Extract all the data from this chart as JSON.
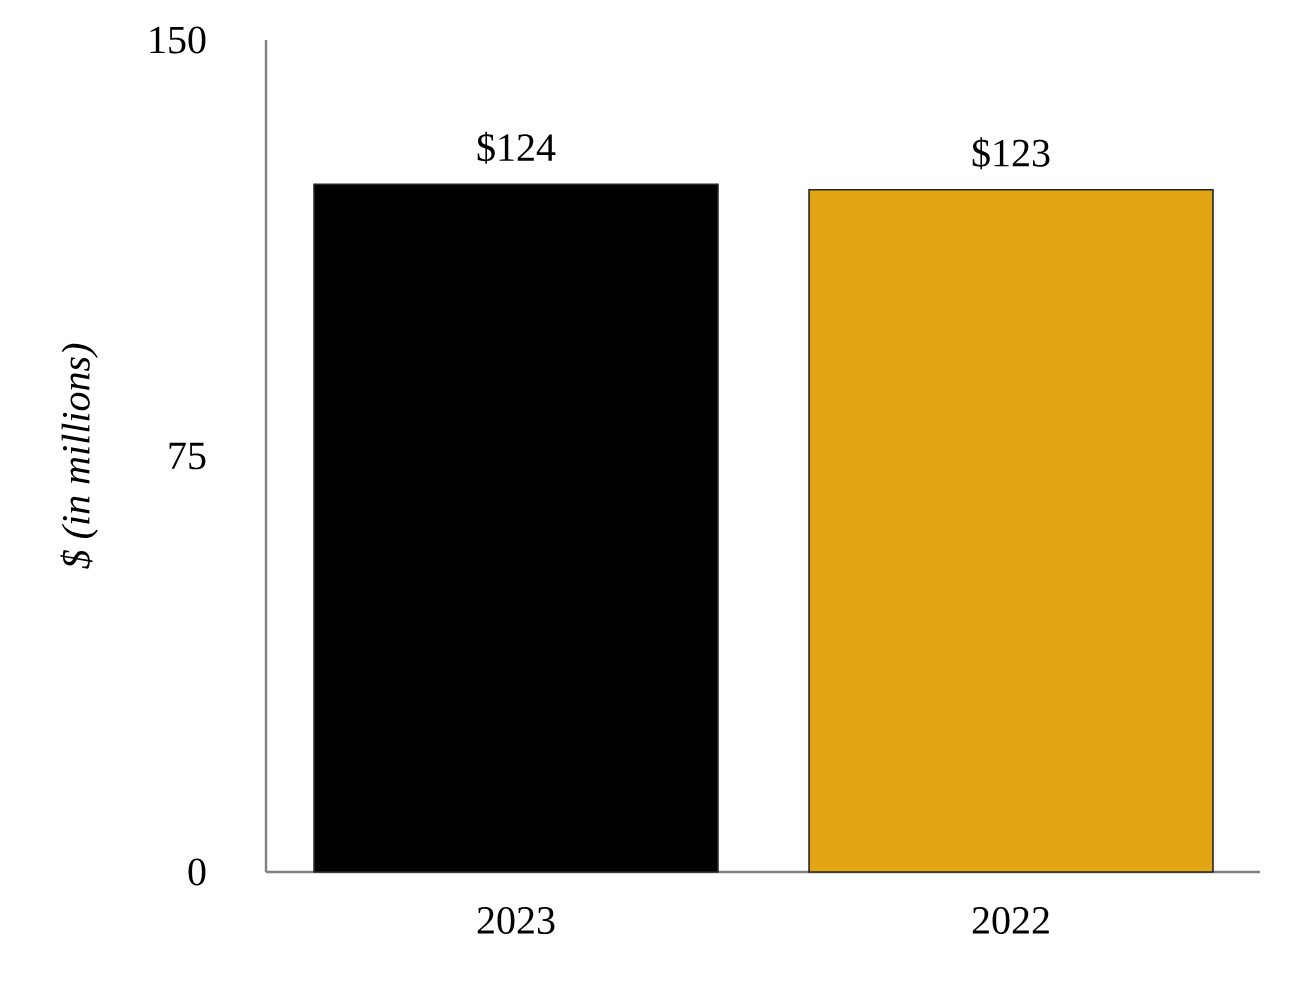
{
  "chart_data": {
    "type": "bar",
    "ylabel": "$ (in millions)",
    "categories": [
      "2023",
      "2022"
    ],
    "values": [
      124,
      123
    ],
    "colors": [
      "#000000",
      "#e2a614"
    ],
    "value_labels": [
      "$124",
      "$123"
    ],
    "ylim": [
      0,
      150
    ],
    "yticks": [
      0,
      75,
      150
    ]
  }
}
